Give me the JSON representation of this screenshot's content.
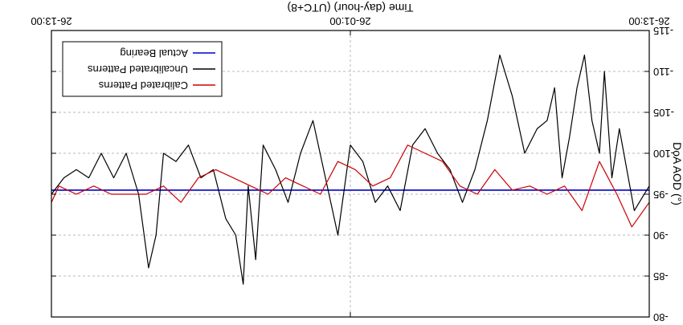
{
  "chart_data": {
    "type": "line",
    "orientation": "rotated-180",
    "xlabel": "Time (day-hour) (UTC+8)",
    "ylabel": "DoA AOD (°)",
    "ylim": [
      -115,
      -80
    ],
    "yticks": [
      -115,
      -110,
      -105,
      -100,
      -95,
      -90,
      -85,
      -80
    ],
    "ytick_labels": [
      "-115",
      "-110",
      "-105",
      "-100",
      "-95",
      "-90",
      "-85",
      "-80"
    ],
    "xlim": [
      0,
      24
    ],
    "xticks": [
      0,
      12,
      24
    ],
    "xtick_labels": [
      "26-13:00",
      "26-01:00",
      "26-13:00"
    ],
    "grid": true,
    "legend_placement": "top-left",
    "series": [
      {
        "name": "Actual Bearing",
        "color": "#0000cc",
        "x": [
          0,
          24
        ],
        "y": [
          -95.5,
          -95.5
        ]
      },
      {
        "name": "Uncalibrated Patterns",
        "color": "#000000",
        "x": [
          0,
          0.6,
          1.2,
          1.5,
          1.8,
          2.0,
          2.3,
          2.6,
          2.9,
          3.2,
          3.5,
          3.8,
          4.1,
          4.5,
          5.0,
          5.5,
          6.0,
          6.5,
          7.0,
          7.5,
          8.0,
          8.5,
          9.0,
          9.5,
          10.0,
          10.5,
          11.0,
          11.5,
          12.0,
          12.5,
          13.0,
          13.5,
          14.0,
          14.5,
          15.0,
          15.5,
          15.8,
          16.1,
          16.3,
          16.6,
          17.0,
          17.5,
          18.0,
          18.5,
          19.0,
          19.5,
          19.8,
          20.1,
          20.5,
          21.0,
          21.5,
          22.0,
          22.5,
          23.0,
          23.5,
          24.0
        ],
        "y": [
          -96,
          -93,
          -103,
          -97,
          -110,
          -100,
          -104,
          -112,
          -108,
          -102,
          -97,
          -108,
          -104,
          -103,
          -100,
          -107,
          -112,
          -104,
          -98,
          -94,
          -98,
          -100,
          -103,
          -101,
          -93,
          -96,
          -94,
          -99,
          -101,
          -90,
          -97,
          -104,
          -100,
          -94,
          -98,
          -101,
          -87,
          -96,
          -84,
          -90,
          -92,
          -98,
          -97,
          -101,
          -99,
          -100,
          -90,
          -86,
          -95,
          -100,
          -97,
          -100,
          -97,
          -98,
          -97,
          -95
        ]
      },
      {
        "name": "Calibrated Patterns",
        "color": "#cc0000",
        "x": [
          0,
          0.7,
          1.3,
          2.0,
          2.7,
          3.4,
          4.1,
          4.8,
          5.5,
          6.2,
          6.9,
          7.6,
          8.3,
          9.0,
          9.7,
          10.4,
          11.1,
          11.8,
          12.5,
          13.2,
          13.9,
          14.6,
          15.3,
          16.0,
          16.7,
          17.4,
          18.1,
          18.8,
          19.5,
          20.2,
          20.9,
          21.6,
          22.3,
          23.0,
          23.7,
          24.0
        ],
        "y": [
          -94,
          -91,
          -95,
          -99,
          -93,
          -96,
          -95,
          -96,
          -95.5,
          -98,
          -95,
          -96,
          -99,
          -100,
          -101,
          -97,
          -96,
          -98,
          -99,
          -95,
          -96,
          -97,
          -95,
          -96,
          -97,
          -98,
          -97,
          -94,
          -96,
          -95,
          -95,
          -95,
          -96,
          -95,
          -96,
          -94
        ]
      }
    ]
  }
}
